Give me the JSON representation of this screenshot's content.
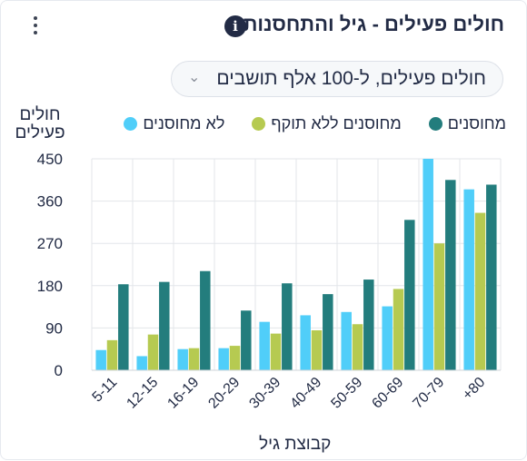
{
  "header": {
    "title": "חולים פעילים - גיל והתחסנות",
    "info_icon": "info-icon",
    "menu_icon": "kebab-menu-icon"
  },
  "selector": {
    "value": "חולים פעילים, ל-100 אלף תושבים",
    "icon": "chevron-down-icon"
  },
  "chart_data": {
    "type": "bar",
    "ylabel": "חולים פעילים",
    "xlabel": "קבוצת גיל",
    "ylim": [
      0,
      450
    ],
    "yticks": [
      0,
      90,
      180,
      270,
      360,
      450
    ],
    "grid": true,
    "legend_position": "top",
    "categories": [
      "5-11",
      "12-15",
      "16-19",
      "20-29",
      "30-39",
      "40-49",
      "50-59",
      "60-69",
      "70-79",
      "+80"
    ],
    "series": [
      {
        "name": "לא מחוסנים",
        "color": "#50cef9",
        "values": [
          43,
          30,
          45,
          47,
          103,
          117,
          124,
          136,
          450,
          385
        ]
      },
      {
        "name": "מחוסנים ללא תוקף",
        "color": "#b6ca51",
        "values": [
          64,
          76,
          47,
          52,
          78,
          85,
          98,
          173,
          270,
          335
        ]
      },
      {
        "name": "מחוסנים",
        "color": "#237d7d",
        "values": [
          183,
          188,
          211,
          127,
          185,
          162,
          193,
          320,
          405,
          395
        ]
      }
    ]
  }
}
